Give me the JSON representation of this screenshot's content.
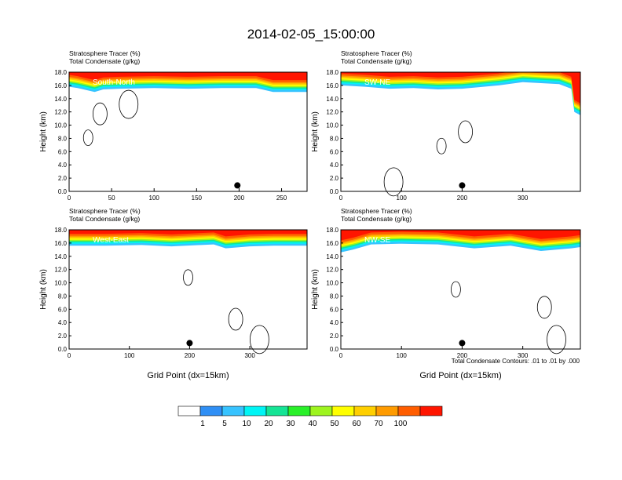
{
  "figure": {
    "title": "2014-02-05_15:00:00",
    "footnote": "Total Condensate Contours: .01 to .01 by .000"
  },
  "colorbar": {
    "colors": [
      "#ffffff",
      "#2f8ff5",
      "#37c3ff",
      "#00f5f5",
      "#15e495",
      "#29f029",
      "#9ef41e",
      "#ffff00",
      "#ffcf00",
      "#ff9b00",
      "#ff5d00",
      "#ff1500"
    ],
    "labels": [
      "1",
      "5",
      "10",
      "20",
      "30",
      "40",
      "50",
      "60",
      "70",
      "100"
    ]
  },
  "chart_data": [
    {
      "type": "heatmap",
      "name": "South-North",
      "title_lines": [
        "Stratosphere Tracer   (%)",
        "Total Condensate   (g/kg)"
      ],
      "ylabel": "Height (km)",
      "xlabel": "",
      "ylim": [
        0,
        18
      ],
      "xlim": [
        0,
        280
      ],
      "yticks": [
        "0.0",
        "2.0",
        "4.0",
        "6.0",
        "8.0",
        "10.0",
        "12.0",
        "14.0",
        "16.0",
        "18.0"
      ],
      "xticks": [
        0,
        50,
        100,
        150,
        200,
        250
      ],
      "tropopause_km": [
        [
          0,
          15.8
        ],
        [
          10,
          15.6
        ],
        [
          20,
          15.3
        ],
        [
          30,
          15.0
        ],
        [
          40,
          15.4
        ],
        [
          60,
          15.5
        ],
        [
          100,
          15.6
        ],
        [
          140,
          15.5
        ],
        [
          180,
          15.6
        ],
        [
          220,
          15.6
        ],
        [
          240,
          15.0
        ],
        [
          280,
          15.0
        ]
      ],
      "marker_x": 198
    },
    {
      "type": "heatmap",
      "name": "SW-NE",
      "title_lines": [
        "Stratosphere Tracer   (%)",
        "Total Condensate   (g/kg)"
      ],
      "ylabel": "Height (km)",
      "xlabel": "",
      "ylim": [
        0,
        18
      ],
      "xlim": [
        0,
        395
      ],
      "yticks": [
        "0.0",
        "2.0",
        "4.0",
        "6.0",
        "8.0",
        "10.0",
        "12.0",
        "14.0",
        "16.0",
        "18.0"
      ],
      "xticks": [
        0,
        100,
        200,
        300
      ],
      "tropopause_km": [
        [
          0,
          16.0
        ],
        [
          40,
          15.8
        ],
        [
          80,
          15.5
        ],
        [
          120,
          15.6
        ],
        [
          160,
          15.4
        ],
        [
          200,
          15.5
        ],
        [
          260,
          16.0
        ],
        [
          300,
          16.5
        ],
        [
          360,
          16.2
        ],
        [
          380,
          15.5
        ],
        [
          385,
          12.0
        ],
        [
          395,
          11.5
        ]
      ],
      "marker_x": 200
    },
    {
      "type": "heatmap",
      "name": "West-East",
      "title_lines": [
        "Stratosphere Tracer   (%)",
        "Total Condensate   (g/kg)"
      ],
      "ylabel": "Height (km)",
      "xlabel": "Grid Point (dx=15km)",
      "ylim": [
        0,
        18
      ],
      "xlim": [
        0,
        395
      ],
      "yticks": [
        "0.0",
        "2.0",
        "4.0",
        "6.0",
        "8.0",
        "10.0",
        "12.0",
        "14.0",
        "16.0",
        "18.0"
      ],
      "xticks": [
        0,
        100,
        200,
        300
      ],
      "tropopause_km": [
        [
          0,
          15.6
        ],
        [
          60,
          15.6
        ],
        [
          120,
          15.7
        ],
        [
          170,
          15.5
        ],
        [
          240,
          15.8
        ],
        [
          260,
          15.2
        ],
        [
          300,
          15.5
        ],
        [
          340,
          15.6
        ],
        [
          395,
          15.6
        ]
      ],
      "marker_x": 200
    },
    {
      "type": "heatmap",
      "name": "NW-SE",
      "title_lines": [
        "Stratosphere Tracer   (%)",
        "Total Condensate   (g/kg)"
      ],
      "ylabel": "Height (km)",
      "xlabel": "Grid Point (dx=15km)",
      "ylim": [
        0,
        18
      ],
      "xlim": [
        0,
        395
      ],
      "yticks": [
        "0.0",
        "2.0",
        "4.0",
        "6.0",
        "8.0",
        "10.0",
        "12.0",
        "14.0",
        "16.0",
        "18.0"
      ],
      "xticks": [
        0,
        100,
        200,
        300
      ],
      "tropopause_km": [
        [
          0,
          14.6
        ],
        [
          20,
          15.0
        ],
        [
          50,
          15.8
        ],
        [
          100,
          15.9
        ],
        [
          160,
          15.8
        ],
        [
          220,
          15.2
        ],
        [
          280,
          15.6
        ],
        [
          330,
          14.8
        ],
        [
          380,
          15.2
        ],
        [
          395,
          15.4
        ]
      ],
      "marker_x": 200
    }
  ]
}
